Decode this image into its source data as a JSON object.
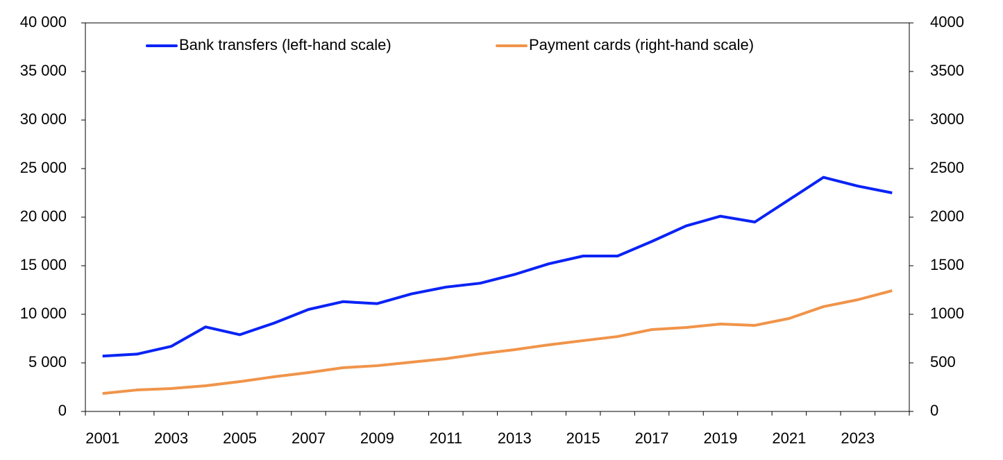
{
  "chart_data": {
    "type": "line",
    "categories": [
      "2001",
      null,
      "2003",
      null,
      "2005",
      null,
      "2007",
      null,
      "2009",
      null,
      "2011",
      null,
      "2013",
      null,
      "2015",
      null,
      "2017",
      null,
      "2019",
      null,
      "2021",
      null,
      "2023",
      null
    ],
    "series": [
      {
        "name": "Bank transfers (left-hand scale)",
        "color": "#0a23f5",
        "axis": "y",
        "values": [
          5700,
          5900,
          6700,
          8700,
          7900,
          9100,
          10500,
          11300,
          11100,
          12100,
          12800,
          13200,
          14100,
          15200,
          16000,
          16000,
          17500,
          19100,
          20100,
          19500,
          21800,
          24100,
          23200,
          22500
        ]
      },
      {
        "name": "Payment cards (right-hand scale)",
        "color": "#f0944a",
        "axis": "y2",
        "values": [
          185,
          221,
          236,
          264,
          307,
          357,
          400,
          450,
          471,
          507,
          543,
          593,
          636,
          686,
          729,
          771,
          843,
          864,
          900,
          886,
          957,
          1079,
          1150,
          1243
        ]
      }
    ],
    "ylim": [
      0,
      40000
    ],
    "yticks": [
      0,
      {
        "value": 5000,
        "label": "5 000"
      },
      {
        "value": 10000,
        "label": "10 000"
      },
      {
        "value": 15000,
        "label": "15 000"
      },
      {
        "value": 20000,
        "label": "20 000"
      },
      {
        "value": 25000,
        "label": "25 000"
      },
      {
        "value": 30000,
        "label": "30 000"
      },
      {
        "value": 35000,
        "label": "35 000"
      },
      {
        "value": 40000,
        "label": "40 000"
      }
    ],
    "y2lim": [
      0,
      4000
    ],
    "y2ticks": [
      0,
      500,
      1000,
      1500,
      2000,
      2500,
      3000,
      3500,
      4000
    ],
    "legend": "top"
  }
}
